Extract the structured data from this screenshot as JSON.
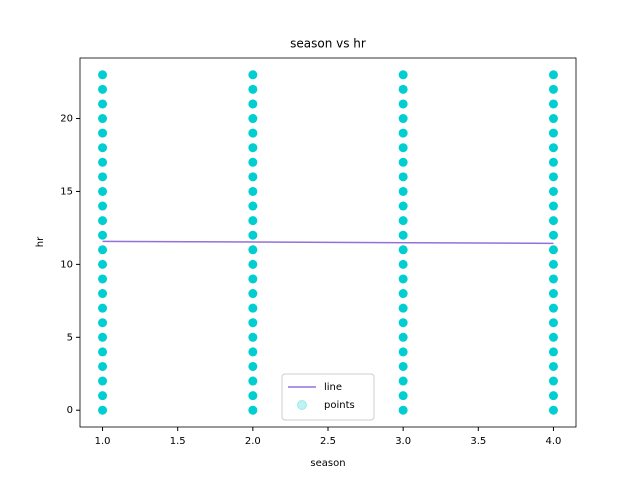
{
  "chart_data": {
    "type": "scatter",
    "title": "season vs hr",
    "xlabel": "season",
    "ylabel": "hr",
    "xlim": [
      0.85,
      4.15
    ],
    "ylim": [
      -1.15,
      24.15
    ],
    "xticks": [
      {
        "value": 1,
        "label": "1.0"
      },
      1.5,
      {
        "value": 2,
        "label": "2.0"
      },
      2.5,
      {
        "value": 3,
        "label": "3.0"
      },
      3.5,
      {
        "value": 4,
        "label": "4.0"
      }
    ],
    "yticks": [
      0,
      5,
      10,
      15,
      20
    ],
    "legend": "lower center",
    "series": [
      {
        "name": "line",
        "mark": "line",
        "color": "#9370db",
        "x": [
          1,
          4
        ],
        "values": [
          11.58,
          11.44
        ]
      },
      {
        "name": "points",
        "mark": "point",
        "color": "#00ced1",
        "x": [
          1,
          1,
          1,
          1,
          1,
          1,
          1,
          1,
          1,
          1,
          1,
          1,
          1,
          1,
          1,
          1,
          1,
          1,
          1,
          1,
          1,
          1,
          1,
          1,
          2,
          2,
          2,
          2,
          2,
          2,
          2,
          2,
          2,
          2,
          2,
          2,
          2,
          2,
          2,
          2,
          2,
          2,
          2,
          2,
          2,
          2,
          2,
          2,
          3,
          3,
          3,
          3,
          3,
          3,
          3,
          3,
          3,
          3,
          3,
          3,
          3,
          3,
          3,
          3,
          3,
          3,
          3,
          3,
          3,
          3,
          3,
          3,
          4,
          4,
          4,
          4,
          4,
          4,
          4,
          4,
          4,
          4,
          4,
          4,
          4,
          4,
          4,
          4,
          4,
          4,
          4,
          4,
          4,
          4,
          4,
          4
        ],
        "values": [
          0,
          1,
          2,
          3,
          4,
          5,
          6,
          7,
          8,
          9,
          10,
          11,
          12,
          13,
          14,
          15,
          16,
          17,
          18,
          19,
          20,
          21,
          22,
          23,
          0,
          1,
          2,
          3,
          4,
          5,
          6,
          7,
          8,
          9,
          10,
          11,
          12,
          13,
          14,
          15,
          16,
          17,
          18,
          19,
          20,
          21,
          22,
          23,
          0,
          1,
          2,
          3,
          4,
          5,
          6,
          7,
          8,
          9,
          10,
          11,
          12,
          13,
          14,
          15,
          16,
          17,
          18,
          19,
          20,
          21,
          22,
          23,
          0,
          1,
          2,
          3,
          4,
          5,
          6,
          7,
          8,
          9,
          10,
          11,
          12,
          13,
          14,
          15,
          16,
          17,
          18,
          19,
          20,
          21,
          22,
          23
        ]
      }
    ]
  }
}
